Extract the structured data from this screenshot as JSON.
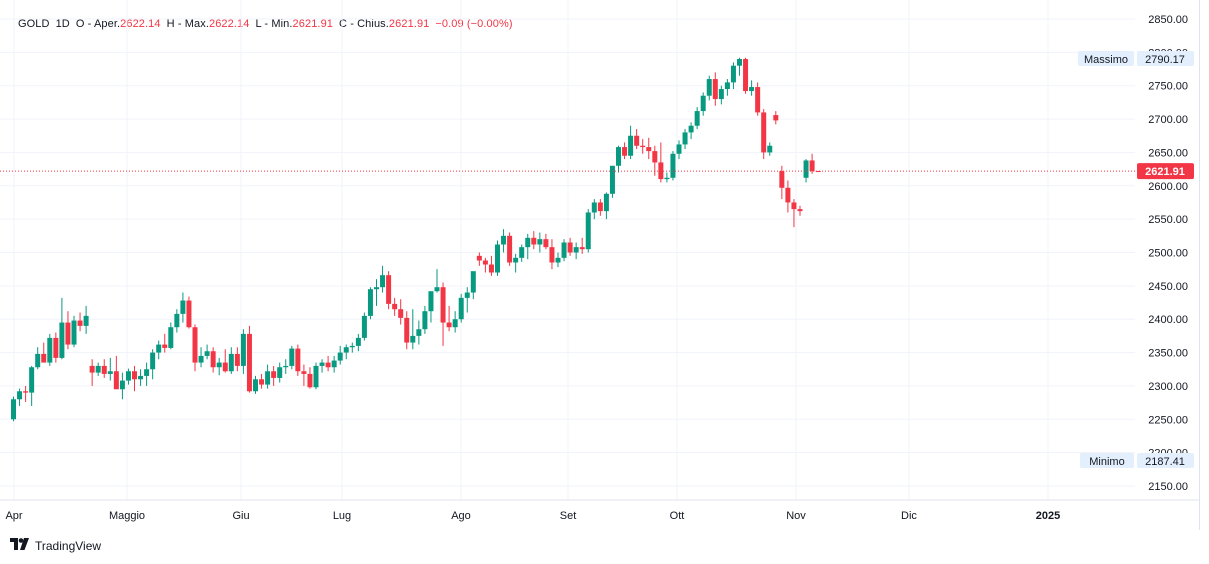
{
  "legend": {
    "symbol": "GOLD",
    "interval": "1D",
    "open_label": "O",
    "open_prefix": "Aper.",
    "open_value": "2622.14",
    "high_label": "H",
    "high_prefix": "Max.",
    "high_value": "2622.14",
    "low_label": "L",
    "low_prefix": "Min.",
    "low_value": "2621.91",
    "close_label": "C",
    "close_prefix": "Chius.",
    "close_value": "2621.91",
    "change": "−0.09 (−0.00%)"
  },
  "price_axis": {
    "ticks": [
      "2850.00",
      "2800.00",
      "2750.00",
      "2700.00",
      "2650.00",
      "2600.00",
      "2550.00",
      "2500.00",
      "2450.00",
      "2400.00",
      "2350.00",
      "2300.00",
      "2250.00",
      "2200.00",
      "2150.00"
    ],
    "tick_values": [
      2850,
      2800,
      2750,
      2700,
      2650,
      2600,
      2550,
      2500,
      2450,
      2400,
      2350,
      2300,
      2250,
      2200,
      2150
    ]
  },
  "time_axis": {
    "labels": [
      "Apr",
      "Maggio",
      "Giu",
      "Lug",
      "Ago",
      "Set",
      "Ott",
      "Nov",
      "Dic",
      "2025"
    ]
  },
  "markers": {
    "high_label": "Massimo",
    "high_value": "2790.17",
    "low_label": "Minimo",
    "low_value": "2187.41",
    "last_price": "2621.91"
  },
  "colors": {
    "up": "#089981",
    "down": "#f23645",
    "grid": "#f0f3fa",
    "last_price_line": "#f23645",
    "text": "#131722"
  },
  "footer": {
    "brand": "TradingView",
    "icon": "tradingview-logo-icon"
  },
  "chart_data": {
    "type": "candlestick",
    "instrument": "GOLD",
    "interval": "1D",
    "ylim": [
      2150,
      2850
    ],
    "x_labels": [
      "Apr",
      "Maggio",
      "Giu",
      "Lug",
      "Ago",
      "Set",
      "Ott",
      "Nov",
      "Dic",
      "2025"
    ],
    "candles_ohlc": [
      [
        2250,
        2284,
        2247,
        2280
      ],
      [
        2280,
        2296,
        2270,
        2292
      ],
      [
        2292,
        2300,
        2276,
        2290
      ],
      [
        2290,
        2330,
        2270,
        2328
      ],
      [
        2328,
        2358,
        2325,
        2348
      ],
      [
        2348,
        2365,
        2340,
        2335
      ],
      [
        2335,
        2378,
        2330,
        2372
      ],
      [
        2372,
        2380,
        2335,
        2342
      ],
      [
        2342,
        2432,
        2340,
        2395
      ],
      [
        2395,
        2412,
        2355,
        2362
      ],
      [
        2362,
        2405,
        2358,
        2398
      ],
      [
        2398,
        2410,
        2382,
        2390
      ],
      [
        2390,
        2420,
        2378,
        2405
      ],
      [
        2330,
        2340,
        2300,
        2320
      ],
      [
        2320,
        2335,
        2315,
        2330
      ],
      [
        2330,
        2340,
        2312,
        2318
      ],
      [
        2318,
        2342,
        2308,
        2322
      ],
      [
        2322,
        2345,
        2300,
        2295
      ],
      [
        2295,
        2320,
        2280,
        2308
      ],
      [
        2308,
        2326,
        2302,
        2322
      ],
      [
        2322,
        2330,
        2292,
        2310
      ],
      [
        2310,
        2325,
        2300,
        2315
      ],
      [
        2315,
        2335,
        2300,
        2325
      ],
      [
        2325,
        2355,
        2310,
        2350
      ],
      [
        2350,
        2368,
        2340,
        2362
      ],
      [
        2362,
        2378,
        2350,
        2357
      ],
      [
        2357,
        2395,
        2355,
        2388
      ],
      [
        2388,
        2415,
        2380,
        2408
      ],
      [
        2408,
        2440,
        2395,
        2428
      ],
      [
        2428,
        2434,
        2386,
        2388
      ],
      [
        2388,
        2392,
        2322,
        2335
      ],
      [
        2335,
        2358,
        2328,
        2345
      ],
      [
        2345,
        2362,
        2340,
        2352
      ],
      [
        2352,
        2358,
        2320,
        2328
      ],
      [
        2328,
        2342,
        2316,
        2335
      ],
      [
        2335,
        2355,
        2320,
        2322
      ],
      [
        2322,
        2358,
        2318,
        2348
      ],
      [
        2348,
        2358,
        2322,
        2330
      ],
      [
        2330,
        2385,
        2318,
        2378
      ],
      [
        2378,
        2390,
        2290,
        2292
      ],
      [
        2292,
        2315,
        2288,
        2310
      ],
      [
        2310,
        2318,
        2296,
        2302
      ],
      [
        2302,
        2332,
        2296,
        2322
      ],
      [
        2322,
        2330,
        2300,
        2312
      ],
      [
        2312,
        2335,
        2305,
        2328
      ],
      [
        2328,
        2340,
        2318,
        2330
      ],
      [
        2330,
        2360,
        2325,
        2356
      ],
      [
        2356,
        2362,
        2315,
        2322
      ],
      [
        2322,
        2332,
        2300,
        2318
      ],
      [
        2318,
        2328,
        2296,
        2298
      ],
      [
        2298,
        2335,
        2295,
        2330
      ],
      [
        2330,
        2340,
        2320,
        2335
      ],
      [
        2335,
        2345,
        2322,
        2328
      ],
      [
        2328,
        2345,
        2320,
        2338
      ],
      [
        2338,
        2360,
        2332,
        2350
      ],
      [
        2350,
        2362,
        2340,
        2358
      ],
      [
        2358,
        2365,
        2350,
        2360
      ],
      [
        2360,
        2378,
        2352,
        2372
      ],
      [
        2372,
        2410,
        2368,
        2405
      ],
      [
        2405,
        2448,
        2400,
        2445
      ],
      [
        2445,
        2460,
        2420,
        2448
      ],
      [
        2448,
        2480,
        2440,
        2466
      ],
      [
        2466,
        2472,
        2415,
        2423
      ],
      [
        2423,
        2432,
        2405,
        2415
      ],
      [
        2415,
        2430,
        2392,
        2402
      ],
      [
        2402,
        2412,
        2355,
        2365
      ],
      [
        2365,
        2415,
        2355,
        2375
      ],
      [
        2375,
        2398,
        2362,
        2385
      ],
      [
        2385,
        2420,
        2378,
        2412
      ],
      [
        2412,
        2428,
        2395,
        2442
      ],
      [
        2442,
        2475,
        2440,
        2448
      ],
      [
        2448,
        2455,
        2360,
        2395
      ],
      [
        2395,
        2420,
        2382,
        2388
      ],
      [
        2388,
        2412,
        2380,
        2400
      ],
      [
        2400,
        2438,
        2395,
        2432
      ],
      [
        2432,
        2448,
        2410,
        2440
      ],
      [
        2440,
        2465,
        2430,
        2472
      ],
      [
        2495,
        2500,
        2480,
        2488
      ],
      [
        2488,
        2492,
        2470,
        2482
      ],
      [
        2482,
        2495,
        2465,
        2470
      ],
      [
        2470,
        2518,
        2465,
        2512
      ],
      [
        2512,
        2535,
        2500,
        2525
      ],
      [
        2525,
        2530,
        2480,
        2485
      ],
      [
        2485,
        2498,
        2470,
        2492
      ],
      [
        2492,
        2512,
        2486,
        2508
      ],
      [
        2508,
        2528,
        2490,
        2522
      ],
      [
        2522,
        2532,
        2505,
        2512
      ],
      [
        2512,
        2530,
        2500,
        2520
      ],
      [
        2520,
        2528,
        2505,
        2508
      ],
      [
        2508,
        2520,
        2475,
        2485
      ],
      [
        2485,
        2500,
        2478,
        2492
      ],
      [
        2492,
        2520,
        2487,
        2515
      ],
      [
        2515,
        2522,
        2495,
        2500
      ],
      [
        2500,
        2515,
        2490,
        2508
      ],
      [
        2508,
        2522,
        2498,
        2505
      ],
      [
        2505,
        2565,
        2500,
        2560
      ],
      [
        2560,
        2580,
        2550,
        2575
      ],
      [
        2575,
        2580,
        2555,
        2562
      ],
      [
        2562,
        2590,
        2550,
        2588
      ],
      [
        2588,
        2615,
        2582,
        2630
      ],
      [
        2630,
        2660,
        2620,
        2658
      ],
      [
        2658,
        2665,
        2640,
        2645
      ],
      [
        2645,
        2690,
        2640,
        2675
      ],
      [
        2675,
        2685,
        2655,
        2660
      ],
      [
        2660,
        2670,
        2648,
        2658
      ],
      [
        2658,
        2672,
        2640,
        2652
      ],
      [
        2652,
        2660,
        2615,
        2635
      ],
      [
        2635,
        2665,
        2605,
        2610
      ],
      [
        2610,
        2620,
        2605,
        2612
      ],
      [
        2612,
        2652,
        2608,
        2648
      ],
      [
        2648,
        2668,
        2640,
        2662
      ],
      [
        2662,
        2685,
        2655,
        2680
      ],
      [
        2680,
        2695,
        2670,
        2690
      ],
      [
        2690,
        2718,
        2685,
        2712
      ],
      [
        2712,
        2740,
        2705,
        2735
      ],
      [
        2735,
        2765,
        2728,
        2760
      ],
      [
        2760,
        2770,
        2720,
        2730
      ],
      [
        2730,
        2750,
        2722,
        2745
      ],
      [
        2745,
        2760,
        2735,
        2755
      ],
      [
        2755,
        2785,
        2745,
        2780
      ],
      [
        2780,
        2792,
        2765,
        2790
      ],
      [
        2790,
        2792,
        2738,
        2742
      ],
      [
        2742,
        2758,
        2735,
        2748
      ],
      [
        2748,
        2755,
        2705,
        2710
      ],
      [
        2710,
        2715,
        2640,
        2650
      ],
      [
        2650,
        2665,
        2645,
        2660
      ],
      [
        2706,
        2712,
        2692,
        2698
      ],
      [
        2622,
        2630,
        2580,
        2597
      ],
      [
        2597,
        2608,
        2560,
        2575
      ],
      [
        2575,
        2580,
        2538,
        2565
      ],
      [
        2565,
        2570,
        2555,
        2562
      ],
      [
        2612,
        2640,
        2605,
        2638
      ],
      [
        2638,
        2648,
        2618,
        2622
      ],
      [
        2622.14,
        2622.14,
        2621.91,
        2621.91
      ]
    ],
    "last_price": 2621.91,
    "high_marker": 2790.17,
    "low_marker": 2187.41
  }
}
